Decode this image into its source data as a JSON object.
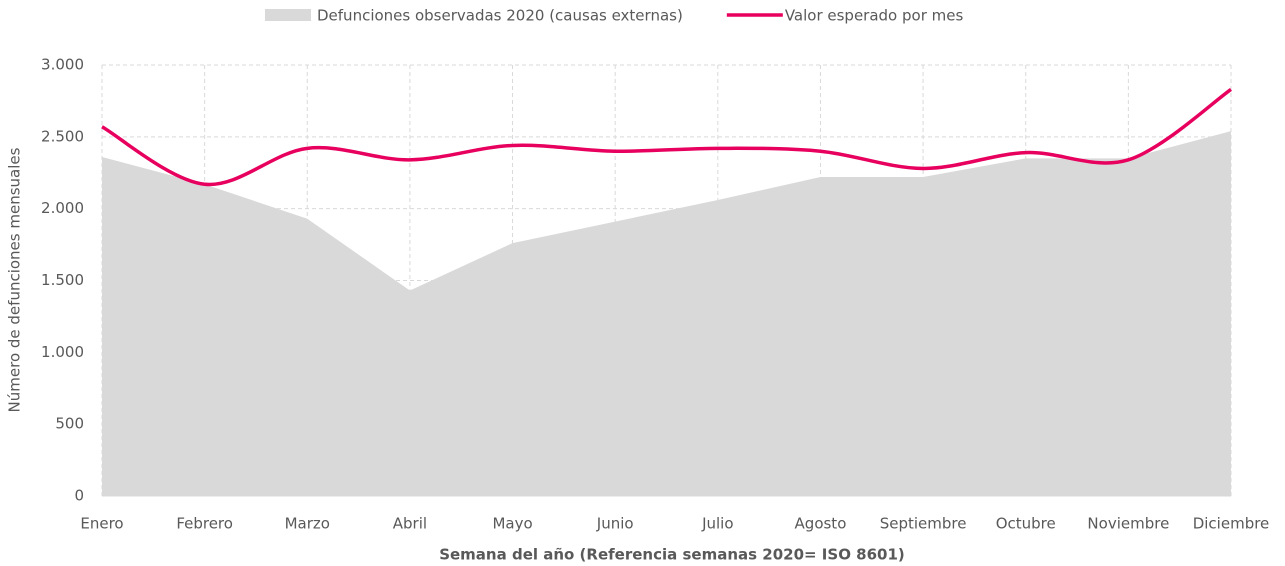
{
  "chart_data": {
    "type": "area-line",
    "categories": [
      "Enero",
      "Febrero",
      "Marzo",
      "Abril",
      "Mayo",
      "Junio",
      "Julio",
      "Agosto",
      "Septiembre",
      "Octubre",
      "Noviembre",
      "Diciembre"
    ],
    "series": [
      {
        "name": "Defunciones observadas 2020 (causas externas)",
        "type": "area",
        "color": "#d9d9d9",
        "values": [
          2360,
          2170,
          1930,
          1430,
          1760,
          1910,
          2060,
          2220,
          2220,
          2350,
          2350,
          2540
        ]
      },
      {
        "name": "Valor esperado por mes",
        "type": "line",
        "color": "#e8005f",
        "values": [
          2570,
          2170,
          2420,
          2340,
          2440,
          2400,
          2420,
          2400,
          2280,
          2390,
          2340,
          2830
        ]
      }
    ],
    "ylim": [
      0,
      3000
    ],
    "yticks": [
      0,
      500,
      {
        "value": 1000,
        "label": "1.000"
      },
      {
        "value": 1500,
        "label": "1.500"
      },
      {
        "value": 2000,
        "label": "2.000"
      },
      {
        "value": 2500,
        "label": "2.500"
      },
      {
        "value": 3000,
        "label": "3.000"
      }
    ],
    "y_label": "Número de defunciones mensuales",
    "x_label": "Semana del año (Referencia semanas 2020= ISO 8601)",
    "grid": true,
    "legend": "top"
  }
}
